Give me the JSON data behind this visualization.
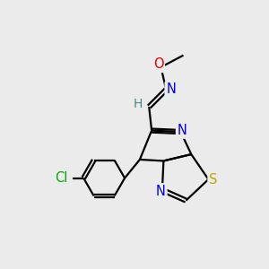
{
  "bg_color": "#ebebeb",
  "atom_colors": {
    "C": "#000000",
    "H": "#4a8888",
    "N": "#0000ee",
    "O": "#dd0000",
    "S": "#bbaa00",
    "Cl": "#00aa00"
  },
  "bond_color": "#000000",
  "bond_width": 1.6,
  "font_size_atoms": 10.5
}
